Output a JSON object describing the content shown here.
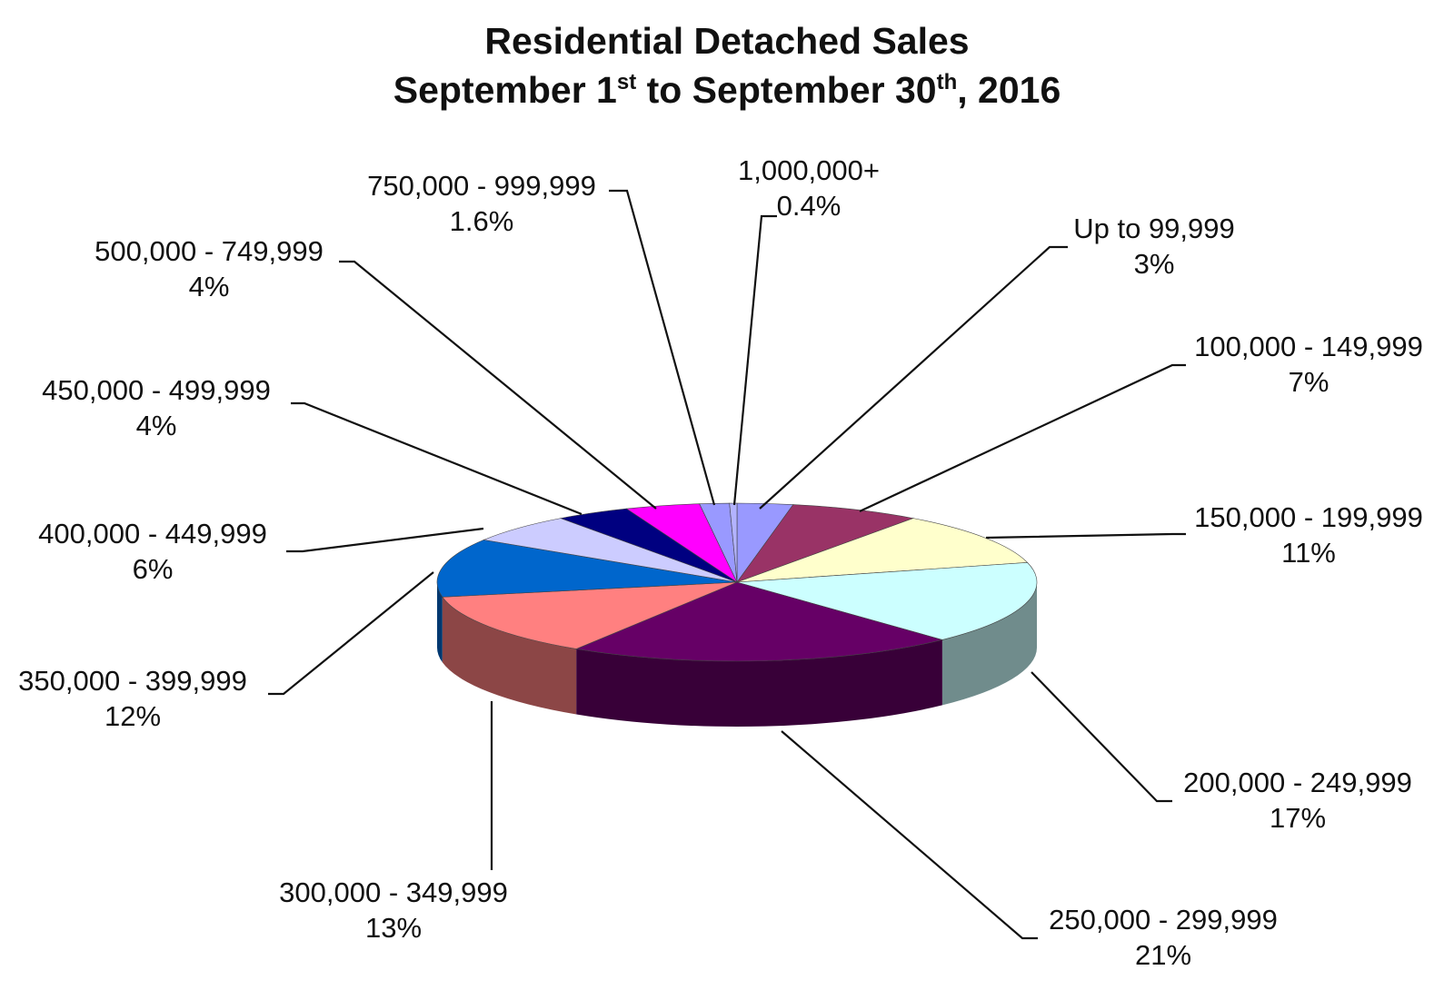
{
  "chart_data": {
    "type": "pie",
    "title": {
      "line1": "Residential Detached Sales",
      "line2_part1": "September 1",
      "line2_sup1": "st",
      "line2_part2": " to September 30",
      "line2_sup2": "th",
      "line2_part3": ", 2016"
    },
    "slices": [
      {
        "label": "Up to 99,999",
        "percent_label": "3%",
        "value": 3,
        "color": "#9999FF"
      },
      {
        "label": "100,000 - 149,999",
        "percent_label": "7%",
        "value": 7,
        "color": "#993366"
      },
      {
        "label": "150,000 - 199,999",
        "percent_label": "11%",
        "value": 11,
        "color": "#FFFFCC"
      },
      {
        "label": "200,000 - 249,999",
        "percent_label": "17%",
        "value": 17,
        "color": "#CCFFFF"
      },
      {
        "label": "250,000 - 299,999",
        "percent_label": "21%",
        "value": 21,
        "color": "#660066"
      },
      {
        "label": "300,000 - 349,999",
        "percent_label": "13%",
        "value": 13,
        "color": "#FF8080"
      },
      {
        "label": "350,000 - 399,999",
        "percent_label": "12%",
        "value": 12,
        "color": "#0066CC"
      },
      {
        "label": "400,000 - 449,999",
        "percent_label": "6%",
        "value": 6,
        "color": "#CCCCFF"
      },
      {
        "label": "450,000 - 499,999",
        "percent_label": "4%",
        "value": 4,
        "color": "#000080"
      },
      {
        "label": "500,000 - 749,999",
        "percent_label": "4%",
        "value": 4,
        "color": "#FF00FF"
      },
      {
        "label": "750,000 - 999,999",
        "percent_label": "1.6%",
        "value": 1.6,
        "color": "#9999FF"
      },
      {
        "label": "1,000,000+",
        "percent_label": "0.4%",
        "value": 0.4,
        "color": "#B3B3FF"
      }
    ]
  }
}
